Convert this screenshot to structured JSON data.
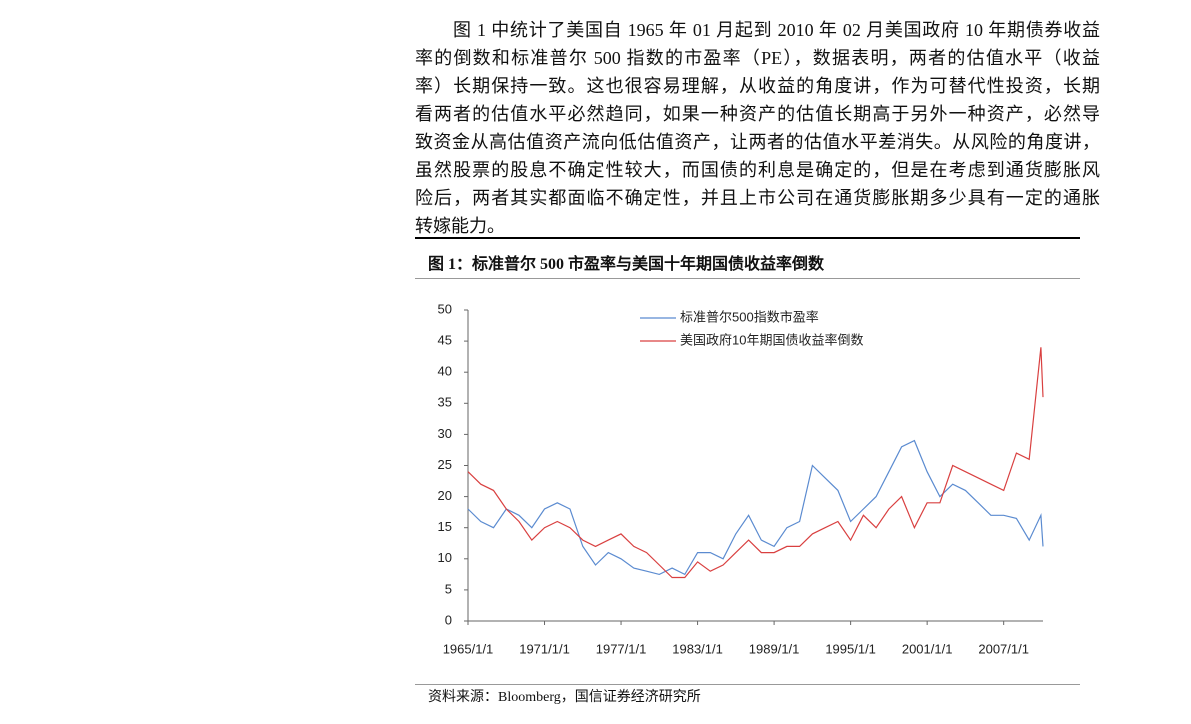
{
  "body": {
    "lines": [
      "图 1 中统计了美国自 1965 年 01 月起到 2010 年 02 月美国政府 10 年期债券收益",
      "率的倒数和标准普尔 500 指数的市盈率（PE），数据表明，两者的估值水平（收益",
      "率）长期保持一致。这也很容易理解，从收益的角度讲，作为可替代性投资，长期",
      "看两者的估值水平必然趋同，如果一种资产的估值长期高于另外一种资产，必然导",
      "致资金从高估值资产流向低估值资产，让两者的估值水平差消失。从风险的角度讲，",
      "虽然股票的股息不确定性较大，而国债的利息是确定的，但是在考虑到通货膨胀风",
      "险后，两者其实都面临不确定性，并且上市公司在通货膨胀期多少具有一定的通胀",
      "转嫁能力。"
    ]
  },
  "figure": {
    "caption": "图 1：标准普尔 500 市盈率与美国十年期国债收益率倒数",
    "source": "资料来源：Bloomberg，国信证券经济研究所"
  },
  "chart_data": {
    "type": "line",
    "x": [
      "1965/1/1",
      "1966/1/1",
      "1967/1/1",
      "1968/1/1",
      "1969/1/1",
      "1970/1/1",
      "1971/1/1",
      "1972/1/1",
      "1973/1/1",
      "1974/1/1",
      "1975/1/1",
      "1976/1/1",
      "1977/1/1",
      "1978/1/1",
      "1979/1/1",
      "1980/1/1",
      "1981/1/1",
      "1982/1/1",
      "1983/1/1",
      "1984/1/1",
      "1985/1/1",
      "1986/1/1",
      "1987/1/1",
      "1988/1/1",
      "1989/1/1",
      "1990/1/1",
      "1991/1/1",
      "1992/1/1",
      "1993/1/1",
      "1994/1/1",
      "1995/1/1",
      "1996/1/1",
      "1997/1/1",
      "1998/1/1",
      "1999/1/1",
      "2000/1/1",
      "2001/1/1",
      "2002/1/1",
      "2003/1/1",
      "2004/1/1",
      "2005/1/1",
      "2006/1/1",
      "2007/1/1",
      "2008/1/1",
      "2009/1/1",
      "2009/12/1",
      "2010/2/1"
    ],
    "series": [
      {
        "name": "标准普尔500指数市盈率",
        "color": "#5b8bd0",
        "values": [
          18,
          16,
          15,
          18,
          17,
          15,
          18,
          19,
          18,
          12,
          9,
          11,
          10,
          8.5,
          8,
          7.5,
          8.5,
          7.5,
          11,
          11,
          10,
          14,
          17,
          13,
          12,
          15,
          16,
          25,
          23,
          21,
          16,
          18,
          20,
          24,
          28,
          29,
          24,
          20,
          22,
          21,
          19,
          17,
          17,
          16.5,
          13,
          17,
          12
        ]
      },
      {
        "name": "美国政府10年期国债收益率倒数",
        "color": "#d94040",
        "values": [
          24,
          22,
          21,
          18,
          16,
          13,
          15,
          16,
          15,
          13,
          12,
          13,
          14,
          12,
          11,
          9,
          7,
          7,
          9.5,
          8,
          9,
          11,
          13,
          11,
          11,
          12,
          12,
          14,
          15,
          16,
          13,
          17,
          15,
          18,
          20,
          15,
          19,
          19,
          25,
          24,
          23,
          22,
          21,
          27,
          26,
          44,
          36
        ]
      }
    ],
    "xticks": [
      "1965/1/1",
      "1971/1/1",
      "1977/1/1",
      "1983/1/1",
      "1989/1/1",
      "1995/1/1",
      "2001/1/1",
      "2007/1/1"
    ],
    "xlim": [
      "1965/1/1",
      "2010/2/1"
    ],
    "ylim": [
      0,
      50
    ],
    "yticks": [
      0,
      5,
      10,
      15,
      20,
      25,
      30,
      35,
      40,
      45,
      50
    ],
    "legend": "upper center"
  }
}
